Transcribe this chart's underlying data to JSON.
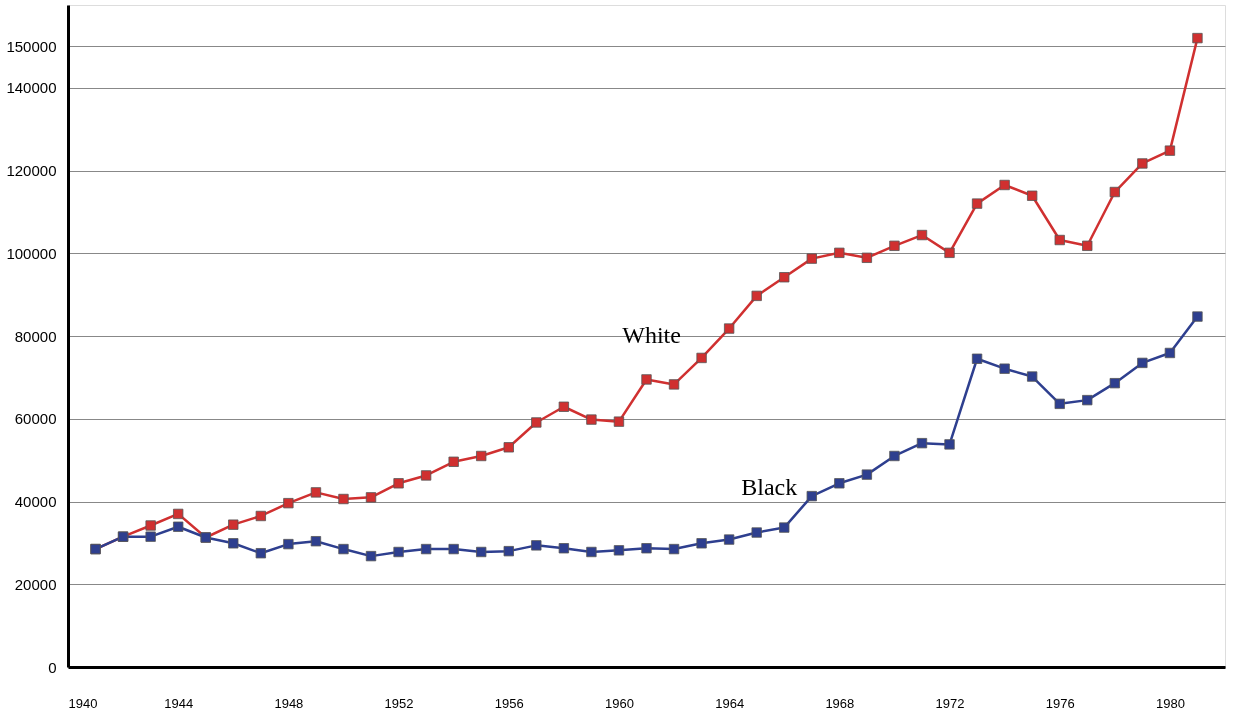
{
  "chart_data": {
    "type": "line",
    "x": [
      1941,
      1942,
      1943,
      1944,
      1945,
      1946,
      1947,
      1948,
      1949,
      1950,
      1951,
      1952,
      1953,
      1954,
      1955,
      1956,
      1957,
      1958,
      1959,
      1960,
      1961,
      1962,
      1963,
      1964,
      1965,
      1966,
      1967,
      1968,
      1969,
      1970,
      1971,
      1972,
      1973,
      1974,
      1975,
      1976,
      1977,
      1978,
      1979,
      1980,
      1981
    ],
    "series": [
      {
        "name": "White",
        "color": "#d03030",
        "values": [
          28500,
          31500,
          34200,
          37000,
          31300,
          34400,
          36500,
          39600,
          42200,
          40600,
          41000,
          44400,
          46300,
          49600,
          51000,
          53100,
          59100,
          62900,
          59800,
          59300,
          69500,
          68300,
          74700,
          81800,
          89700,
          94200,
          98700,
          100100,
          98900,
          101800,
          104400,
          100100,
          112000,
          116500,
          113900,
          103200,
          101800,
          114800,
          121700,
          124800,
          152000
        ]
      },
      {
        "name": "Black",
        "color": "#2e3f8f",
        "values": [
          28500,
          31500,
          31500,
          33900,
          31300,
          29900,
          27500,
          29700,
          30400,
          28500,
          26800,
          27800,
          28500,
          28500,
          27800,
          28000,
          29400,
          28700,
          27800,
          28200,
          28700,
          28500,
          29900,
          30800,
          32500,
          33700,
          41300,
          44400,
          46500,
          51000,
          54100,
          53800,
          74500,
          72100,
          70200,
          63600,
          64500,
          68600,
          73500,
          75900,
          84700
        ]
      }
    ],
    "xlim": [
      1940,
      1982
    ],
    "xticks": [
      1940,
      1944,
      1948,
      1952,
      1956,
      1960,
      1964,
      1968,
      1972,
      1976,
      1980
    ],
    "ylim": [
      0,
      160000
    ],
    "yticks": [
      0,
      20000,
      40000,
      60000,
      80000,
      100000,
      120000,
      140000,
      150000
    ],
    "grid": "y",
    "marker": "square",
    "line_style": "solid",
    "legend": false
  }
}
